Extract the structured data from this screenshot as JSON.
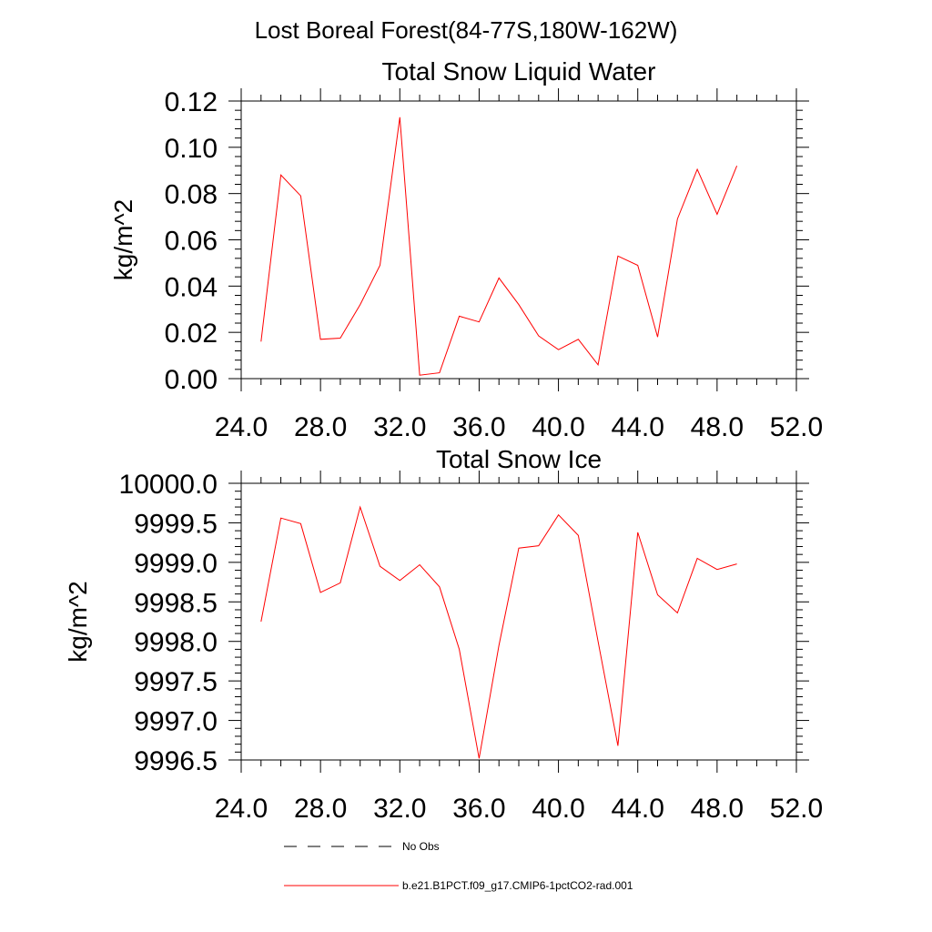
{
  "page": {
    "main_title": "Lost Boreal Forest(84-77S,180W-162W)"
  },
  "legend": {
    "obs_label": "No Obs",
    "model_label": "b.e21.B1PCT.f09_g17.CMIP6-1pctCO2-rad.001"
  },
  "colors": {
    "series": "#ff0000",
    "obs": "#000000"
  },
  "chart_data": [
    {
      "type": "line",
      "title": "Total Snow Liquid Water",
      "xlabel": "",
      "ylabel": "kg/m^2",
      "xlim": [
        24,
        52
      ],
      "ylim": [
        0,
        0.12
      ],
      "x_ticks": [
        24,
        28,
        32,
        36,
        40,
        44,
        48,
        52
      ],
      "x_tick_labels": [
        "24.0",
        "28.0",
        "32.0",
        "36.0",
        "40.0",
        "44.0",
        "48.0",
        "52.0"
      ],
      "y_ticks": [
        0,
        0.02,
        0.04,
        0.06,
        0.08,
        0.1,
        0.12
      ],
      "y_tick_labels": [
        "0.00",
        "0.02",
        "0.04",
        "0.06",
        "0.08",
        "0.10",
        "0.12"
      ],
      "grid": false,
      "series": [
        {
          "name": "b.e21.B1PCT.f09_g17.CMIP6-1pctCO2-rad.001",
          "x": [
            25,
            26,
            27,
            28,
            29,
            30,
            31,
            32,
            33,
            34,
            35,
            36,
            37,
            38,
            39,
            40,
            41,
            42,
            43,
            44,
            45,
            46,
            47,
            48,
            49
          ],
          "values": [
            0.016,
            0.088,
            0.079,
            0.017,
            0.0175,
            0.032,
            0.049,
            0.113,
            0.0015,
            0.0025,
            0.027,
            0.0245,
            0.0435,
            0.032,
            0.0185,
            0.0125,
            0.017,
            0.006,
            0.053,
            0.049,
            0.018,
            0.069,
            0.0905,
            0.071,
            0.092
          ]
        }
      ]
    },
    {
      "type": "line",
      "title": "Total Snow Ice",
      "xlabel": "",
      "ylabel": "kg/m^2",
      "xlim": [
        24,
        52
      ],
      "ylim": [
        9996.5,
        10000.0
      ],
      "x_ticks": [
        24,
        28,
        32,
        36,
        40,
        44,
        48,
        52
      ],
      "x_tick_labels": [
        "24.0",
        "28.0",
        "32.0",
        "36.0",
        "40.0",
        "44.0",
        "48.0",
        "52.0"
      ],
      "y_ticks": [
        9996.5,
        9997.0,
        9997.5,
        9998.0,
        9998.5,
        9999.0,
        9999.5,
        10000.0
      ],
      "y_tick_labels": [
        "9996.5",
        "9997.0",
        "9997.5",
        "9998.0",
        "9998.5",
        "9999.0",
        "9999.5",
        "10000.0"
      ],
      "grid": false,
      "series": [
        {
          "name": "b.e21.B1PCT.f09_g17.CMIP6-1pctCO2-rad.001",
          "x": [
            25,
            26,
            27,
            28,
            29,
            30,
            31,
            32,
            33,
            34,
            35,
            36,
            37,
            38,
            39,
            40,
            41,
            42,
            43,
            44,
            45,
            46,
            47,
            48,
            49
          ],
          "values": [
            9998.25,
            9999.56,
            9999.49,
            9998.62,
            9998.74,
            9999.7,
            9998.95,
            9998.77,
            9998.97,
            9998.69,
            9997.9,
            9996.52,
            9997.95,
            9999.18,
            9999.21,
            9999.6,
            9999.34,
            9998.0,
            9996.68,
            9999.38,
            9998.59,
            9998.36,
            9999.05,
            9998.91,
            9998.98
          ]
        }
      ]
    }
  ]
}
